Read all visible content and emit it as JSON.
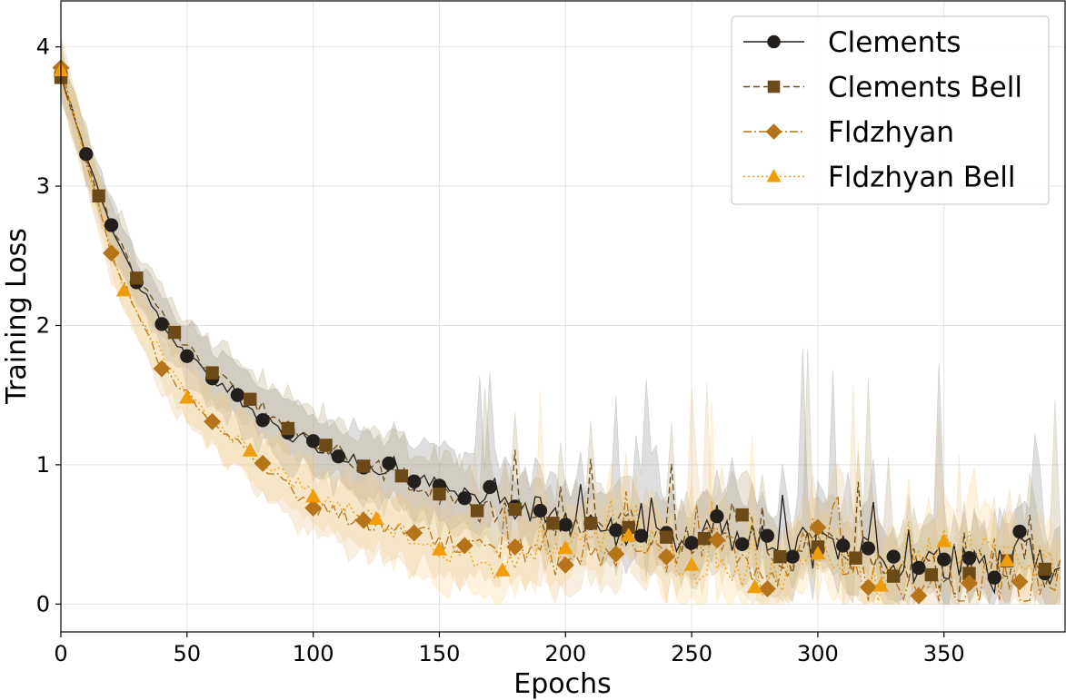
{
  "chart_data": {
    "type": "line",
    "title": "",
    "xlabel": "Epochs",
    "ylabel": "Training Loss",
    "xlim": [
      0,
      398
    ],
    "ylim": [
      -0.2,
      4.33
    ],
    "xticks": [
      "0",
      "50",
      "100",
      "150",
      "200",
      "250",
      "300",
      "350"
    ],
    "yticks": [
      "0",
      "1",
      "2",
      "3",
      "4"
    ],
    "grid": true,
    "legend_position": "top-right",
    "series": [
      {
        "name": "Clements",
        "color": "#231f1c",
        "band_color": "#8a8a8a",
        "marker": "circle",
        "linestyle": "solid",
        "x": [
          0,
          10,
          20,
          30,
          40,
          50,
          60,
          70,
          80,
          90,
          100,
          110,
          120,
          130,
          140,
          150,
          160,
          170,
          180,
          190,
          200,
          210,
          220,
          230,
          240,
          250,
          260,
          270,
          280,
          290,
          300,
          310,
          320,
          330,
          340,
          350,
          360,
          370,
          380,
          390
        ],
        "y": [
          3.8,
          3.23,
          2.72,
          2.31,
          2.01,
          1.78,
          1.62,
          1.5,
          1.32,
          1.23,
          1.17,
          1.06,
          0.98,
          1.01,
          0.88,
          0.85,
          0.76,
          0.84,
          0.7,
          0.67,
          0.57,
          0.58,
          0.53,
          0.49,
          0.51,
          0.44,
          0.63,
          0.43,
          0.49,
          0.34,
          0.39,
          0.42,
          0.4,
          0.34,
          0.26,
          0.32,
          0.33,
          0.19,
          0.52,
          0.22
        ]
      },
      {
        "name": "Clements Bell",
        "color": "#6b4a17",
        "band_color": "#b3a07a",
        "marker": "square",
        "linestyle": "dashed",
        "x": [
          0,
          15,
          30,
          45,
          60,
          75,
          90,
          105,
          120,
          135,
          150,
          165,
          180,
          195,
          210,
          225,
          240,
          255,
          270,
          285,
          300,
          315,
          330,
          345,
          360,
          375,
          390
        ],
        "y": [
          3.78,
          2.93,
          2.34,
          1.95,
          1.66,
          1.47,
          1.26,
          1.14,
          0.99,
          0.92,
          0.79,
          0.67,
          0.68,
          0.58,
          0.58,
          0.55,
          0.48,
          0.47,
          0.64,
          0.34,
          0.41,
          0.33,
          0.2,
          0.21,
          0.22,
          0.31,
          0.25
        ]
      },
      {
        "name": "Fldzhyan",
        "color": "#b5741a",
        "band_color": "#e3c28f",
        "marker": "diamond",
        "linestyle": "dashdot",
        "x": [
          0,
          20,
          40,
          60,
          80,
          100,
          120,
          140,
          160,
          180,
          200,
          220,
          240,
          260,
          280,
          300,
          320,
          340,
          360,
          380
        ],
        "y": [
          3.85,
          2.52,
          1.69,
          1.31,
          1.01,
          0.69,
          0.6,
          0.51,
          0.42,
          0.41,
          0.28,
          0.36,
          0.34,
          0.46,
          0.11,
          0.55,
          0.12,
          0.06,
          0.15,
          0.16
        ]
      },
      {
        "name": "Fldzhyan Bell",
        "color": "#f09d0c",
        "band_color": "#f5cf85",
        "marker": "triangle",
        "linestyle": "dotted",
        "x": [
          0,
          25,
          50,
          75,
          100,
          125,
          150,
          175,
          200,
          225,
          250,
          275,
          300,
          325,
          350,
          375
        ],
        "y": [
          3.83,
          2.25,
          1.48,
          1.1,
          0.77,
          0.61,
          0.39,
          0.24,
          0.4,
          0.49,
          0.28,
          0.12,
          0.36,
          0.13,
          0.45,
          0.31
        ]
      }
    ]
  }
}
